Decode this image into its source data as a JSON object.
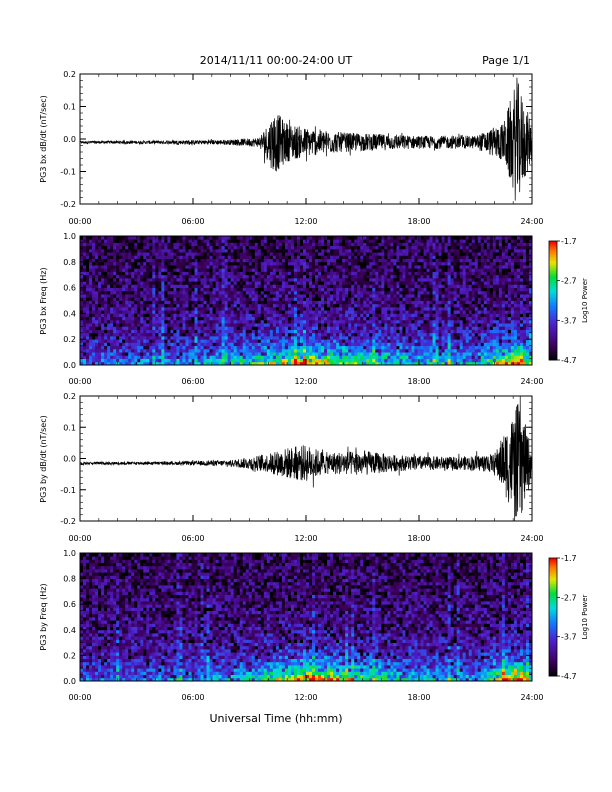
{
  "header": {
    "title": "2014/11/11  00:00-24:00 UT",
    "page": "Page 1/1"
  },
  "footer": {
    "xlabel": "Universal Time (hh:mm)"
  },
  "chart_data": [
    {
      "type": "line",
      "ylabel": "PG3 bx dB/dt (nT/sec)",
      "xlim": [
        "00:00",
        "24:00"
      ],
      "x_ticks": [
        "00:00",
        "06:00",
        "12:00",
        "18:00",
        "24:00"
      ],
      "ylim": [
        -0.2,
        0.2
      ],
      "y_ticks": [
        "-0.2",
        "-0.1",
        "0.0",
        "0.1",
        "0.2"
      ],
      "series": [
        {
          "baseline": -0.01,
          "amplitude_envelope": [
            {
              "hour": 0,
              "amp": 0.004
            },
            {
              "hour": 4,
              "amp": 0.005
            },
            {
              "hour": 8,
              "amp": 0.008
            },
            {
              "hour": 9.5,
              "amp": 0.015
            },
            {
              "hour": 10,
              "amp": 0.06
            },
            {
              "hour": 10.3,
              "amp": 0.1
            },
            {
              "hour": 11,
              "amp": 0.06
            },
            {
              "hour": 12,
              "amp": 0.045
            },
            {
              "hour": 14,
              "amp": 0.03
            },
            {
              "hour": 16,
              "amp": 0.025
            },
            {
              "hour": 18,
              "amp": 0.02
            },
            {
              "hour": 21,
              "amp": 0.02
            },
            {
              "hour": 22.5,
              "amp": 0.06
            },
            {
              "hour": 23.2,
              "amp": 0.2
            },
            {
              "hour": 23.6,
              "amp": 0.12
            },
            {
              "hour": 24,
              "amp": 0.06
            }
          ]
        }
      ]
    },
    {
      "type": "heatmap",
      "ylabel": "PG3 bx Freq (Hz)",
      "xlim": [
        "00:00",
        "24:00"
      ],
      "x_ticks": [
        "00:00",
        "06:00",
        "12:00",
        "18:00",
        "24:00"
      ],
      "ylim": [
        0.0,
        1.0
      ],
      "y_ticks": [
        "0.0",
        "0.2",
        "0.4",
        "0.6",
        "0.8",
        "1.0"
      ],
      "colorbar": {
        "label": "Log10 Power",
        "range": [
          -4.7,
          -1.7
        ],
        "ticks": [
          "-1.7",
          "-2.7",
          "-3.7",
          "-4.7"
        ]
      },
      "activity_profile": [
        {
          "hour": 0,
          "level": 0.25
        },
        {
          "hour": 6,
          "level": 0.3
        },
        {
          "hour": 9,
          "level": 0.45
        },
        {
          "hour": 12,
          "level": 0.75
        },
        {
          "hour": 14,
          "level": 0.6
        },
        {
          "hour": 17,
          "level": 0.45
        },
        {
          "hour": 21,
          "level": 0.35
        },
        {
          "hour": 23.3,
          "level": 0.9
        },
        {
          "hour": 24,
          "level": 0.4
        }
      ]
    },
    {
      "type": "line",
      "ylabel": "PG3 by dB/dt (nT/sec)",
      "xlim": [
        "00:00",
        "24:00"
      ],
      "x_ticks": [
        "00:00",
        "06:00",
        "12:00",
        "18:00",
        "24:00"
      ],
      "ylim": [
        -0.2,
        0.2
      ],
      "y_ticks": [
        "-0.2",
        "-0.1",
        "0.0",
        "0.1",
        "0.2"
      ],
      "series": [
        {
          "baseline": -0.015,
          "amplitude_envelope": [
            {
              "hour": 0,
              "amp": 0.004
            },
            {
              "hour": 5,
              "amp": 0.005
            },
            {
              "hour": 8,
              "amp": 0.01
            },
            {
              "hour": 10,
              "amp": 0.03
            },
            {
              "hour": 11,
              "amp": 0.05
            },
            {
              "hour": 12,
              "amp": 0.06
            },
            {
              "hour": 13,
              "amp": 0.035
            },
            {
              "hour": 15,
              "amp": 0.04
            },
            {
              "hour": 17,
              "amp": 0.025
            },
            {
              "hour": 20,
              "amp": 0.02
            },
            {
              "hour": 22,
              "amp": 0.03
            },
            {
              "hour": 23.3,
              "amp": 0.2
            },
            {
              "hour": 24,
              "amp": 0.05
            }
          ]
        }
      ]
    },
    {
      "type": "heatmap",
      "ylabel": "PG3 by Freq (Hz)",
      "xlim": [
        "00:00",
        "24:00"
      ],
      "x_ticks": [
        "00:00",
        "06:00",
        "12:00",
        "18:00",
        "24:00"
      ],
      "ylim": [
        0.0,
        1.0
      ],
      "y_ticks": [
        "0.0",
        "0.2",
        "0.4",
        "0.6",
        "0.8",
        "1.0"
      ],
      "colorbar": {
        "label": "Log10 Power",
        "range": [
          -4.7,
          -1.7
        ],
        "ticks": [
          "-1.7",
          "-2.7",
          "-3.7",
          "-4.7"
        ]
      },
      "activity_profile": [
        {
          "hour": 0,
          "level": 0.2
        },
        {
          "hour": 6,
          "level": 0.25
        },
        {
          "hour": 9,
          "level": 0.4
        },
        {
          "hour": 12,
          "level": 0.8
        },
        {
          "hour": 14,
          "level": 0.65
        },
        {
          "hour": 17,
          "level": 0.4
        },
        {
          "hour": 21,
          "level": 0.3
        },
        {
          "hour": 23.3,
          "level": 0.95
        },
        {
          "hour": 24,
          "level": 0.4
        }
      ]
    }
  ]
}
